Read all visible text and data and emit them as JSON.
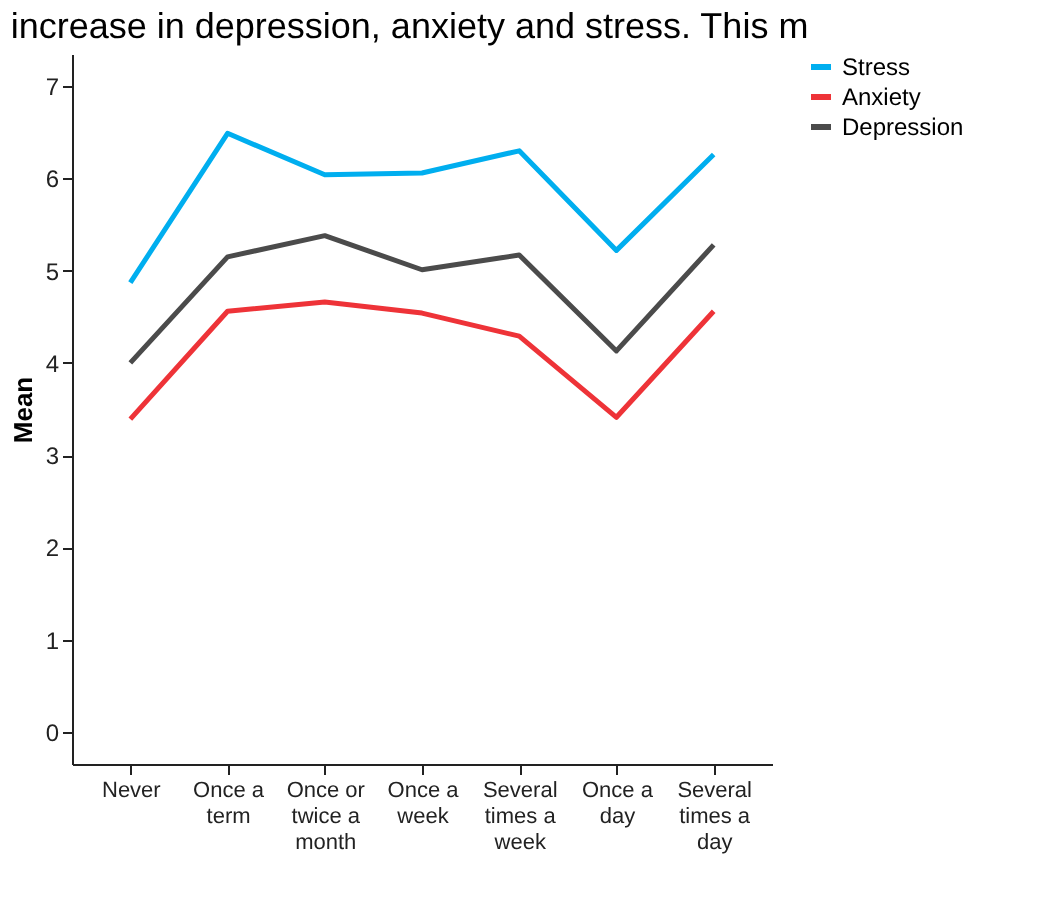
{
  "chart_data": {
    "type": "line",
    "title": "increase in depression, anxiety and stress. This m",
    "ylabel": "Mean",
    "categories": [
      "Never",
      "Once a term",
      "Once or twice a month",
      "Once a week",
      "Several times a week",
      "Once a day",
      "Several times a day"
    ],
    "series": [
      {
        "name": "Stress",
        "color": "#00aeef",
        "values": [
          4.87,
          6.49,
          6.04,
          6.06,
          6.3,
          5.22,
          6.26
        ]
      },
      {
        "name": "Anxiety",
        "color": "#ee3338",
        "values": [
          3.39,
          4.56,
          4.66,
          4.54,
          4.29,
          3.41,
          4.56
        ]
      },
      {
        "name": "Depression",
        "color": "#4b4b4b",
        "values": [
          4.0,
          5.15,
          5.38,
          5.01,
          5.17,
          4.13,
          5.28
        ]
      }
    ],
    "ylim": [
      -0.35,
      7.35
    ],
    "yticks": [
      0,
      1,
      2,
      3,
      4,
      5,
      6,
      7
    ],
    "grid": false,
    "legend": "top right",
    "line_style": "solid",
    "marker": "none"
  }
}
